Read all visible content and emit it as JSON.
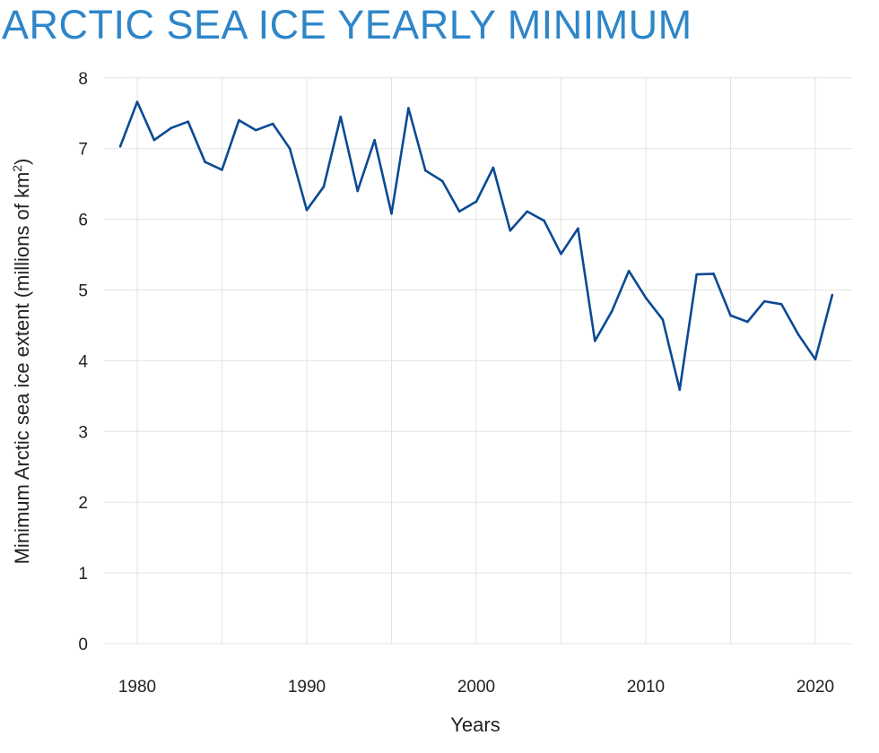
{
  "chart_data": {
    "type": "line",
    "title": "ARCTIC SEA ICE YEARLY MINIMUM",
    "xlabel": "Years",
    "ylabel": "Minimum Arctic sea ice extent (millions of km",
    "ylabel_sup": "2",
    "ylabel_end": ")",
    "xlim": [
      1978,
      2022
    ],
    "ylim": [
      0,
      8
    ],
    "xticks": [
      1980,
      1990,
      2000,
      2010,
      2020
    ],
    "yticks": [
      0,
      1,
      2,
      3,
      4,
      5,
      6,
      7,
      8
    ],
    "grid": true,
    "line_color": "#0b4a94",
    "title_color": "#2e86c8",
    "x": [
      1979,
      1980,
      1981,
      1982,
      1983,
      1984,
      1985,
      1986,
      1987,
      1988,
      1989,
      1990,
      1991,
      1992,
      1993,
      1994,
      1995,
      1996,
      1997,
      1998,
      1999,
      2000,
      2001,
      2002,
      2003,
      2004,
      2005,
      2006,
      2007,
      2008,
      2009,
      2010,
      2011,
      2012,
      2013,
      2014,
      2015,
      2016,
      2017,
      2018,
      2019,
      2020,
      2021
    ],
    "values": [
      7.03,
      7.66,
      7.12,
      7.29,
      7.38,
      6.81,
      6.7,
      7.4,
      7.26,
      7.35,
      7.0,
      6.13,
      6.46,
      7.45,
      6.4,
      7.12,
      6.08,
      7.57,
      6.69,
      6.54,
      6.11,
      6.25,
      6.73,
      5.84,
      6.11,
      5.98,
      5.51,
      5.87,
      4.28,
      4.7,
      5.27,
      4.89,
      4.58,
      3.59,
      5.22,
      5.23,
      4.64,
      4.55,
      4.84,
      4.8,
      4.37,
      4.02,
      4.93
    ]
  }
}
